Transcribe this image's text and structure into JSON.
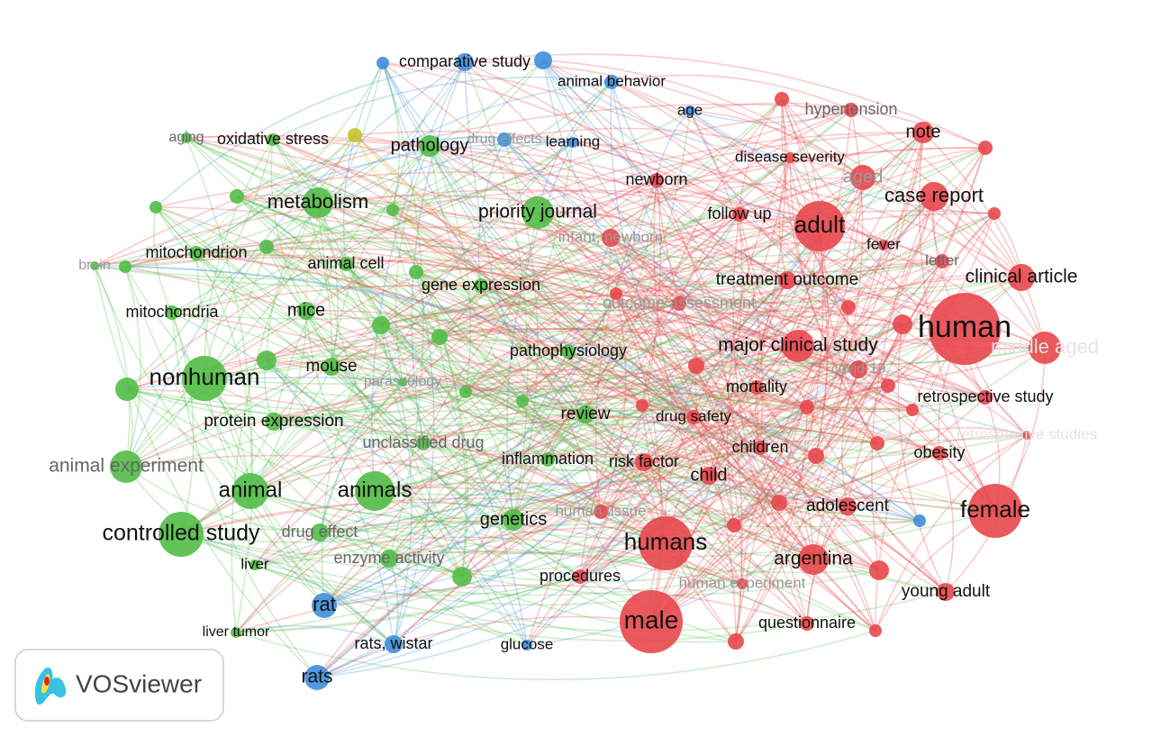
{
  "nodes": [
    {
      "label": "oxidative stress"
    },
    {
      "label": "aging"
    },
    {
      "label": "metabolism"
    },
    {
      "label": "pathology"
    },
    {
      "label": "priority journal"
    },
    {
      "label": "mitochondrion"
    },
    {
      "label": "animal cell"
    },
    {
      "label": "gene expression"
    },
    {
      "label": "mitochondria"
    },
    {
      "label": "mice"
    },
    {
      "label": "mouse"
    },
    {
      "label": "nonhuman"
    },
    {
      "label": "parasitology"
    },
    {
      "label": "pathophysiology"
    },
    {
      "label": "protein expression"
    },
    {
      "label": "review"
    },
    {
      "label": "unclassified drug"
    },
    {
      "label": "inflammation"
    },
    {
      "label": "animal experiment"
    },
    {
      "label": "animal"
    },
    {
      "label": "animals"
    },
    {
      "label": "genetics"
    },
    {
      "label": "controlled study"
    },
    {
      "label": "drug effect"
    },
    {
      "label": "enzyme activity"
    },
    {
      "label": "liver"
    },
    {
      "label": "liver tumor"
    },
    {
      "label": "brain"
    },
    {
      "label": "comparative study"
    },
    {
      "label": "animal behavior"
    },
    {
      "label": "age"
    },
    {
      "label": "learning"
    },
    {
      "label": "drug effects"
    },
    {
      "label": "rat"
    },
    {
      "label": "rats, wistar"
    },
    {
      "label": "glucose"
    },
    {
      "label": "rats"
    },
    {
      "label": "hypertension"
    },
    {
      "label": "note"
    },
    {
      "label": "disease severity"
    },
    {
      "label": "aged"
    },
    {
      "label": "newborn"
    },
    {
      "label": "case report"
    },
    {
      "label": "adult"
    },
    {
      "label": "follow up"
    },
    {
      "label": "infant, newborn"
    },
    {
      "label": "fever"
    },
    {
      "label": "letter"
    },
    {
      "label": "treatment outcome"
    },
    {
      "label": "clinical article"
    },
    {
      "label": "outcome assessment"
    },
    {
      "label": "human"
    },
    {
      "label": "middle aged"
    },
    {
      "label": "major clinical study"
    },
    {
      "label": "covid-19"
    },
    {
      "label": "mortality"
    },
    {
      "label": "retrospective study"
    },
    {
      "label": "drug safety"
    },
    {
      "label": "retrospective studies"
    },
    {
      "label": "children"
    },
    {
      "label": "obesity"
    },
    {
      "label": "risk factor"
    },
    {
      "label": "child"
    },
    {
      "label": "adolescent"
    },
    {
      "label": "female"
    },
    {
      "label": "human tissue"
    },
    {
      "label": "humans"
    },
    {
      "label": "argentina"
    },
    {
      "label": "procedures"
    },
    {
      "label": "human experiment"
    },
    {
      "label": "young adult"
    },
    {
      "label": "male"
    },
    {
      "label": "questionnaire"
    }
  ],
  "logo": {
    "text": "VOSviewer"
  }
}
